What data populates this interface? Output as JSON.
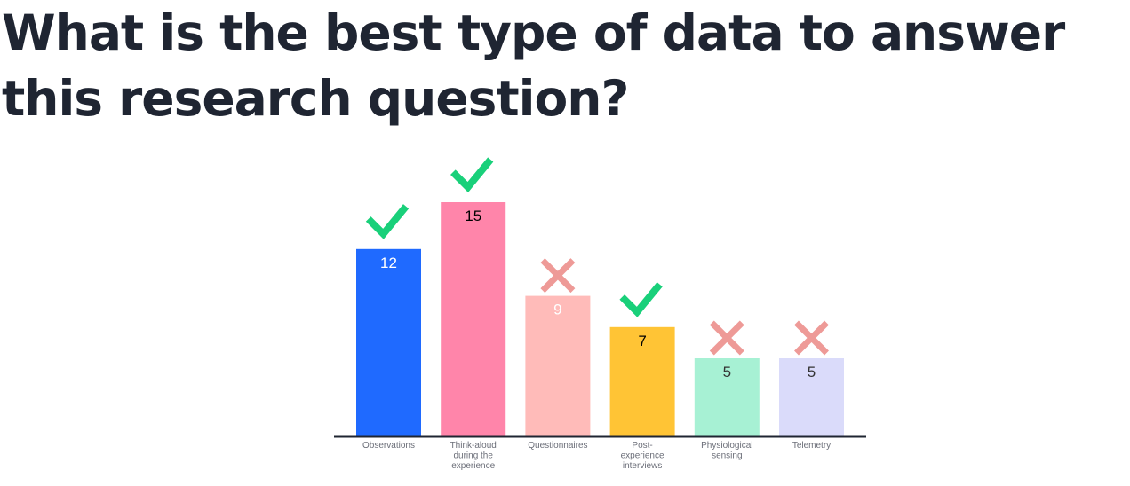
{
  "title": "What is the best type of data to answer this research question?",
  "chart_data": {
    "type": "bar",
    "title": "",
    "xlabel": "",
    "ylabel": "",
    "ylim": [
      0,
      15
    ],
    "grid": false,
    "legend": "none",
    "categories": [
      [
        "Observations"
      ],
      [
        "Think-aloud",
        "during the",
        "experience"
      ],
      [
        "Questionnaires"
      ],
      [
        "Post-",
        "experience",
        "interviews"
      ],
      [
        "Physiological",
        "sensing"
      ],
      [
        "Telemetry"
      ]
    ],
    "values": [
      12,
      15,
      9,
      7,
      5,
      5
    ],
    "colors": [
      "#1f6aff",
      "#ff85aa",
      "#ffbbb9",
      "#ffc435",
      "#a7f1d4",
      "#dadbfa"
    ],
    "value_label_colors": [
      "#ffffff",
      "#000000",
      "#ffffff",
      "#000000",
      "#333333",
      "#333333"
    ],
    "marks": [
      "check",
      "check",
      "cross",
      "check",
      "cross",
      "cross"
    ],
    "mark_colors": {
      "check": "#19d07a",
      "cross": "#ee9a97"
    },
    "axis_color": "#1f2532"
  }
}
